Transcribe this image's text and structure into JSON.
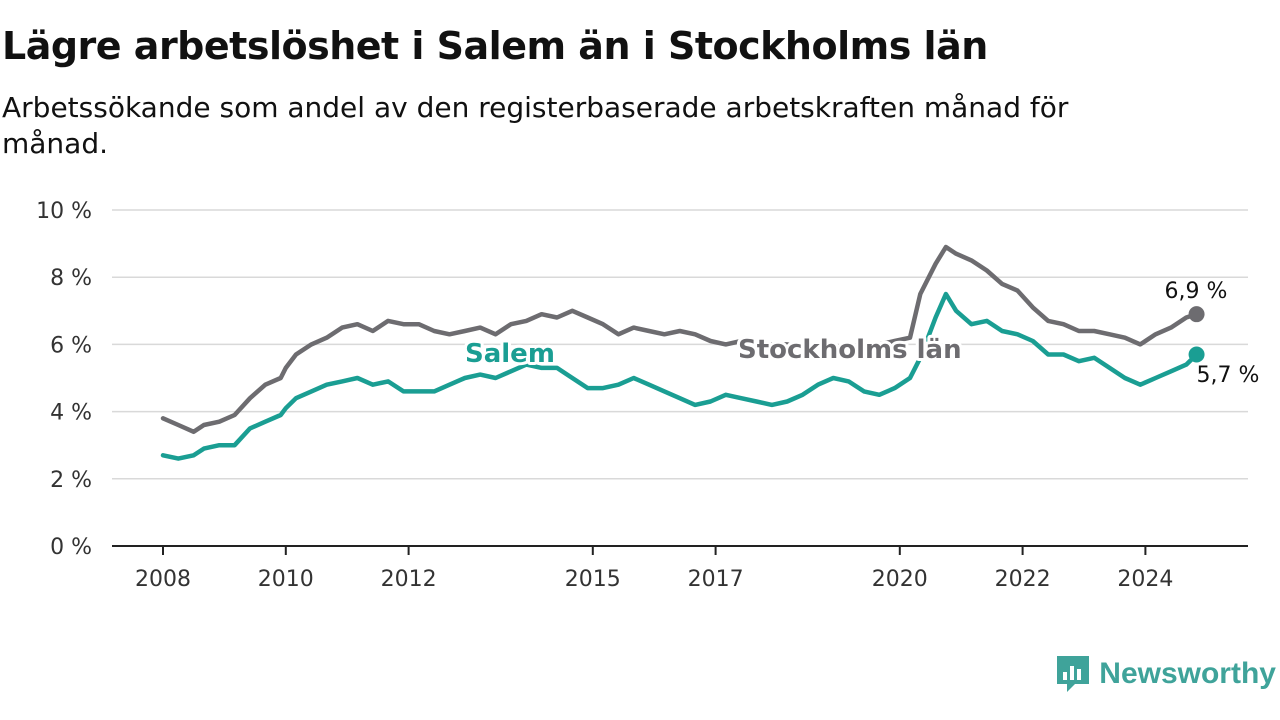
{
  "title": "Lägre arbetslöshet i Salem än i Stockholms län",
  "subtitle": "Arbetssökande som andel av den registerbaserade arbetskraften månad för månad.",
  "brand": {
    "name": "Newsworthy",
    "color": "#3fa39a",
    "icon": "newsworthy-chart-icon"
  },
  "chart_data": {
    "type": "line",
    "title": "Lägre arbetslöshet i Salem än i Stockholms län",
    "subtitle": "Arbetssökande som andel av den registerbaserade arbetskraften månad för månad.",
    "xlabel": "",
    "ylabel": "",
    "x_ticks": [
      "2008",
      "2010",
      "2012",
      "2015",
      "2017",
      "2020",
      "2022",
      "2024"
    ],
    "y_ticks": [
      "0 %",
      "2 %",
      "4 %",
      "6 %",
      "8 %",
      "10 %"
    ],
    "ylim": [
      0,
      10
    ],
    "xlim": [
      "2008-01",
      "2024-12"
    ],
    "grid": true,
    "legend": "inline labels",
    "series": [
      {
        "name": "Stockholms län",
        "color": "#6d6c70",
        "end_label": "6,9 %",
        "points": [
          [
            "2008-01",
            3.8
          ],
          [
            "2008-04",
            3.6
          ],
          [
            "2008-07",
            3.4
          ],
          [
            "2008-09",
            3.6
          ],
          [
            "2008-12",
            3.7
          ],
          [
            "2009-03",
            3.9
          ],
          [
            "2009-06",
            4.4
          ],
          [
            "2009-09",
            4.8
          ],
          [
            "2009-12",
            5.0
          ],
          [
            "2010-01",
            5.3
          ],
          [
            "2010-03",
            5.7
          ],
          [
            "2010-06",
            6.0
          ],
          [
            "2010-09",
            6.2
          ],
          [
            "2010-12",
            6.5
          ],
          [
            "2011-03",
            6.6
          ],
          [
            "2011-06",
            6.4
          ],
          [
            "2011-09",
            6.7
          ],
          [
            "2011-12",
            6.6
          ],
          [
            "2012-03",
            6.6
          ],
          [
            "2012-06",
            6.4
          ],
          [
            "2012-09",
            6.3
          ],
          [
            "2012-12",
            6.4
          ],
          [
            "2013-03",
            6.5
          ],
          [
            "2013-06",
            6.3
          ],
          [
            "2013-09",
            6.6
          ],
          [
            "2013-12",
            6.7
          ],
          [
            "2014-03",
            6.9
          ],
          [
            "2014-06",
            6.8
          ],
          [
            "2014-09",
            7.0
          ],
          [
            "2014-12",
            6.8
          ],
          [
            "2015-03",
            6.6
          ],
          [
            "2015-06",
            6.3
          ],
          [
            "2015-09",
            6.5
          ],
          [
            "2015-12",
            6.4
          ],
          [
            "2016-03",
            6.3
          ],
          [
            "2016-06",
            6.4
          ],
          [
            "2016-09",
            6.3
          ],
          [
            "2016-12",
            6.1
          ],
          [
            "2017-03",
            6.0
          ],
          [
            "2017-06",
            6.1
          ],
          [
            "2017-09",
            6.0
          ],
          [
            "2017-12",
            6.0
          ],
          [
            "2018-03",
            6.0
          ],
          [
            "2018-06",
            5.9
          ],
          [
            "2018-09",
            6.0
          ],
          [
            "2018-12",
            5.9
          ],
          [
            "2019-03",
            6.0
          ],
          [
            "2019-06",
            5.9
          ],
          [
            "2019-09",
            6.0
          ],
          [
            "2019-12",
            6.1
          ],
          [
            "2020-03",
            6.2
          ],
          [
            "2020-05",
            7.5
          ],
          [
            "2020-08",
            8.4
          ],
          [
            "2020-10",
            8.9
          ],
          [
            "2020-12",
            8.7
          ],
          [
            "2021-03",
            8.5
          ],
          [
            "2021-06",
            8.2
          ],
          [
            "2021-09",
            7.8
          ],
          [
            "2021-12",
            7.6
          ],
          [
            "2022-03",
            7.1
          ],
          [
            "2022-06",
            6.7
          ],
          [
            "2022-09",
            6.6
          ],
          [
            "2022-12",
            6.4
          ],
          [
            "2023-03",
            6.4
          ],
          [
            "2023-06",
            6.3
          ],
          [
            "2023-09",
            6.2
          ],
          [
            "2023-12",
            6.0
          ],
          [
            "2024-03",
            6.3
          ],
          [
            "2024-06",
            6.5
          ],
          [
            "2024-09",
            6.8
          ],
          [
            "2024-11",
            6.9
          ]
        ]
      },
      {
        "name": "Salem",
        "color": "#1a9e93",
        "end_label": "5,7 %",
        "points": [
          [
            "2008-01",
            2.7
          ],
          [
            "2008-04",
            2.6
          ],
          [
            "2008-07",
            2.7
          ],
          [
            "2008-09",
            2.9
          ],
          [
            "2008-12",
            3.0
          ],
          [
            "2009-03",
            3.0
          ],
          [
            "2009-06",
            3.5
          ],
          [
            "2009-09",
            3.7
          ],
          [
            "2009-12",
            3.9
          ],
          [
            "2010-01",
            4.1
          ],
          [
            "2010-03",
            4.4
          ],
          [
            "2010-06",
            4.6
          ],
          [
            "2010-09",
            4.8
          ],
          [
            "2010-12",
            4.9
          ],
          [
            "2011-03",
            5.0
          ],
          [
            "2011-06",
            4.8
          ],
          [
            "2011-09",
            4.9
          ],
          [
            "2011-12",
            4.6
          ],
          [
            "2012-03",
            4.6
          ],
          [
            "2012-06",
            4.6
          ],
          [
            "2012-09",
            4.8
          ],
          [
            "2012-12",
            5.0
          ],
          [
            "2013-03",
            5.1
          ],
          [
            "2013-06",
            5.0
          ],
          [
            "2013-09",
            5.2
          ],
          [
            "2013-12",
            5.4
          ],
          [
            "2014-03",
            5.3
          ],
          [
            "2014-06",
            5.3
          ],
          [
            "2014-09",
            5.0
          ],
          [
            "2014-12",
            4.7
          ],
          [
            "2015-03",
            4.7
          ],
          [
            "2015-06",
            4.8
          ],
          [
            "2015-09",
            5.0
          ],
          [
            "2015-12",
            4.8
          ],
          [
            "2016-03",
            4.6
          ],
          [
            "2016-06",
            4.4
          ],
          [
            "2016-09",
            4.2
          ],
          [
            "2016-12",
            4.3
          ],
          [
            "2017-03",
            4.5
          ],
          [
            "2017-06",
            4.4
          ],
          [
            "2017-09",
            4.3
          ],
          [
            "2017-12",
            4.2
          ],
          [
            "2018-03",
            4.3
          ],
          [
            "2018-06",
            4.5
          ],
          [
            "2018-09",
            4.8
          ],
          [
            "2018-12",
            5.0
          ],
          [
            "2019-03",
            4.9
          ],
          [
            "2019-06",
            4.6
          ],
          [
            "2019-09",
            4.5
          ],
          [
            "2019-12",
            4.7
          ],
          [
            "2020-03",
            5.0
          ],
          [
            "2020-05",
            5.6
          ],
          [
            "2020-08",
            6.8
          ],
          [
            "2020-10",
            7.5
          ],
          [
            "2020-12",
            7.0
          ],
          [
            "2021-03",
            6.6
          ],
          [
            "2021-06",
            6.7
          ],
          [
            "2021-09",
            6.4
          ],
          [
            "2021-12",
            6.3
          ],
          [
            "2022-03",
            6.1
          ],
          [
            "2022-06",
            5.7
          ],
          [
            "2022-09",
            5.7
          ],
          [
            "2022-12",
            5.5
          ],
          [
            "2023-03",
            5.6
          ],
          [
            "2023-06",
            5.3
          ],
          [
            "2023-09",
            5.0
          ],
          [
            "2023-12",
            4.8
          ],
          [
            "2024-03",
            5.0
          ],
          [
            "2024-06",
            5.2
          ],
          [
            "2024-09",
            5.4
          ],
          [
            "2024-11",
            5.7
          ]
        ]
      }
    ]
  }
}
